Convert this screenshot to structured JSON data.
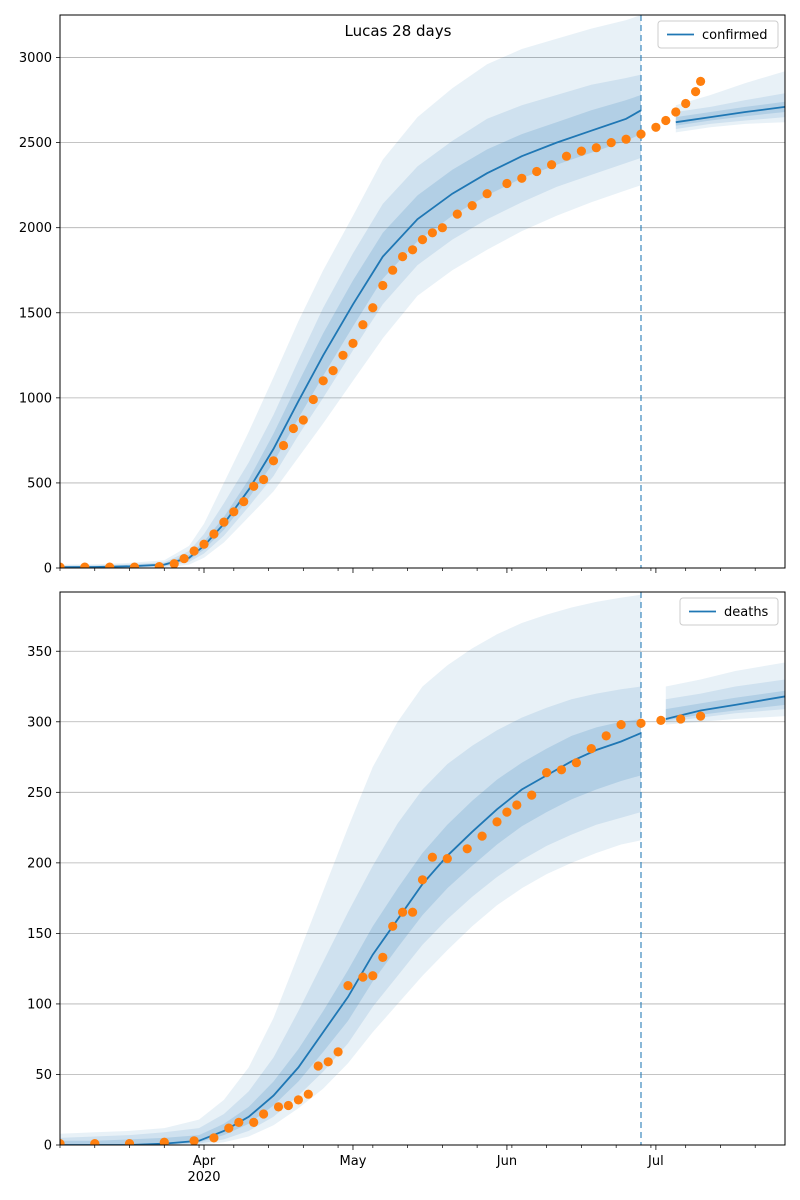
{
  "title": "Lucas 28 days",
  "colors": {
    "model": "#1f77b4",
    "observed": "#ff7f0e",
    "grid": "#b0b0b0"
  },
  "x_ticks": [
    {
      "label": "Apr",
      "sub": "2020",
      "date": "2020-04-01"
    },
    {
      "label": "May",
      "sub": "",
      "date": "2020-05-01"
    },
    {
      "label": "Jun",
      "sub": "",
      "date": "2020-06-01"
    },
    {
      "label": "Jul",
      "sub": "",
      "date": "2020-07-01"
    }
  ],
  "chart_data": [
    {
      "type": "line",
      "xlim": [
        "2020-03-03",
        "2020-07-27"
      ],
      "ylim": [
        0,
        3250
      ],
      "yticks": [
        0,
        500,
        1000,
        1500,
        2000,
        2500,
        3000
      ],
      "legend": {
        "label": "confirmed",
        "placement": "top-right"
      },
      "grid": "horizontal",
      "forecast_start": "2020-06-28",
      "model": {
        "x": [
          "2020-03-03",
          "2020-03-10",
          "2020-03-17",
          "2020-03-24",
          "2020-03-29",
          "2020-04-01",
          "2020-04-05",
          "2020-04-10",
          "2020-04-15",
          "2020-04-20",
          "2020-04-25",
          "2020-05-01",
          "2020-05-07",
          "2020-05-14",
          "2020-05-21",
          "2020-05-28",
          "2020-06-04",
          "2020-06-11",
          "2020-06-18",
          "2020-06-25",
          "2020-06-28",
          "2020-07-05",
          "2020-07-12",
          "2020-07-19",
          "2020-07-27"
        ],
        "y": [
          5,
          6,
          10,
          20,
          60,
          130,
          260,
          460,
          700,
          980,
          1250,
          1550,
          1830,
          2050,
          2200,
          2320,
          2420,
          2500,
          2570,
          2640,
          2690,
          2620,
          2650,
          2680,
          2710
        ],
        "band_outer": [
          [
            0,
            20
          ],
          [
            0,
            22
          ],
          [
            0,
            30
          ],
          [
            0,
            45
          ],
          [
            20,
            130
          ],
          [
            60,
            260
          ],
          [
            150,
            500
          ],
          [
            300,
            800
          ],
          [
            450,
            1120
          ],
          [
            650,
            1450
          ],
          [
            850,
            1750
          ],
          [
            1100,
            2070
          ],
          [
            1350,
            2400
          ],
          [
            1600,
            2650
          ],
          [
            1750,
            2820
          ],
          [
            1870,
            2960
          ],
          [
            1980,
            3050
          ],
          [
            2070,
            3110
          ],
          [
            2150,
            3170
          ],
          [
            2220,
            3220
          ],
          [
            2250,
            3250
          ],
          [
            2560,
            2720
          ],
          [
            2590,
            2780
          ],
          [
            2610,
            2850
          ],
          [
            2620,
            2920
          ]
        ],
        "band_mid": [
          [
            1,
            14
          ],
          [
            1,
            16
          ],
          [
            3,
            22
          ],
          [
            8,
            34
          ],
          [
            35,
            100
          ],
          [
            85,
            200
          ],
          [
            190,
            380
          ],
          [
            360,
            620
          ],
          [
            540,
            900
          ],
          [
            780,
            1220
          ],
          [
            1000,
            1530
          ],
          [
            1280,
            1850
          ],
          [
            1550,
            2140
          ],
          [
            1780,
            2360
          ],
          [
            1930,
            2510
          ],
          [
            2050,
            2640
          ],
          [
            2150,
            2720
          ],
          [
            2240,
            2780
          ],
          [
            2310,
            2840
          ],
          [
            2380,
            2880
          ],
          [
            2410,
            2900
          ],
          [
            2580,
            2680
          ],
          [
            2610,
            2710
          ],
          [
            2630,
            2750
          ],
          [
            2650,
            2790
          ]
        ],
        "band_inner": [
          [
            2,
            9
          ],
          [
            3,
            10
          ],
          [
            6,
            16
          ],
          [
            13,
            27
          ],
          [
            47,
            78
          ],
          [
            108,
            155
          ],
          [
            225,
            300
          ],
          [
            410,
            520
          ],
          [
            620,
            790
          ],
          [
            880,
            1090
          ],
          [
            1130,
            1380
          ],
          [
            1420,
            1690
          ],
          [
            1700,
            1970
          ],
          [
            1920,
            2190
          ],
          [
            2070,
            2340
          ],
          [
            2190,
            2460
          ],
          [
            2290,
            2550
          ],
          [
            2370,
            2620
          ],
          [
            2440,
            2690
          ],
          [
            2510,
            2750
          ],
          [
            2550,
            2780
          ],
          [
            2600,
            2650
          ],
          [
            2630,
            2680
          ],
          [
            2655,
            2710
          ],
          [
            2680,
            2740
          ]
        ]
      },
      "observed": {
        "x": [
          "2020-03-03",
          "2020-03-08",
          "2020-03-13",
          "2020-03-18",
          "2020-03-23",
          "2020-03-26",
          "2020-03-28",
          "2020-03-30",
          "2020-04-01",
          "2020-04-03",
          "2020-04-05",
          "2020-04-07",
          "2020-04-09",
          "2020-04-11",
          "2020-04-13",
          "2020-04-15",
          "2020-04-17",
          "2020-04-19",
          "2020-04-21",
          "2020-04-23",
          "2020-04-25",
          "2020-04-27",
          "2020-04-29",
          "2020-05-01",
          "2020-05-03",
          "2020-05-05",
          "2020-05-07",
          "2020-05-09",
          "2020-05-11",
          "2020-05-13",
          "2020-05-15",
          "2020-05-17",
          "2020-05-19",
          "2020-05-22",
          "2020-05-25",
          "2020-05-28",
          "2020-06-01",
          "2020-06-04",
          "2020-06-07",
          "2020-06-10",
          "2020-06-13",
          "2020-06-16",
          "2020-06-19",
          "2020-06-22",
          "2020-06-25",
          "2020-06-28",
          "2020-07-01",
          "2020-07-03",
          "2020-07-05",
          "2020-07-07",
          "2020-07-09",
          "2020-07-10"
        ],
        "y": [
          5,
          5,
          5,
          5,
          8,
          25,
          55,
          100,
          140,
          200,
          270,
          330,
          390,
          480,
          520,
          630,
          720,
          820,
          870,
          990,
          1100,
          1160,
          1250,
          1320,
          1430,
          1530,
          1660,
          1750,
          1830,
          1870,
          1930,
          1970,
          2000,
          2080,
          2130,
          2200,
          2260,
          2290,
          2330,
          2370,
          2420,
          2450,
          2470,
          2500,
          2520,
          2550,
          2590,
          2630,
          2680,
          2730,
          2800,
          2860
        ]
      },
      "xlabel": "",
      "ylabel": ""
    },
    {
      "type": "line",
      "xlim": [
        "2020-03-03",
        "2020-07-27"
      ],
      "ylim": [
        0,
        392
      ],
      "yticks": [
        0,
        50,
        100,
        150,
        200,
        250,
        300,
        350
      ],
      "legend": {
        "label": "deaths",
        "placement": "top-right"
      },
      "grid": "horizontal",
      "forecast_start": "2020-06-28",
      "model": {
        "x": [
          "2020-03-03",
          "2020-03-10",
          "2020-03-17",
          "2020-03-24",
          "2020-03-31",
          "2020-04-05",
          "2020-04-10",
          "2020-04-15",
          "2020-04-20",
          "2020-04-25",
          "2020-04-30",
          "2020-05-05",
          "2020-05-10",
          "2020-05-15",
          "2020-05-20",
          "2020-05-25",
          "2020-05-30",
          "2020-06-04",
          "2020-06-09",
          "2020-06-14",
          "2020-06-19",
          "2020-06-24",
          "2020-06-28",
          "2020-07-03",
          "2020-07-10",
          "2020-07-17",
          "2020-07-27"
        ],
        "y": [
          0,
          0,
          0,
          1,
          3,
          10,
          20,
          35,
          55,
          80,
          105,
          135,
          160,
          185,
          205,
          222,
          238,
          252,
          262,
          272,
          280,
          286,
          292,
          302,
          308,
          312,
          318
        ],
        "band_outer": [
          [
            0,
            8
          ],
          [
            0,
            9
          ],
          [
            0,
            10
          ],
          [
            0,
            12
          ],
          [
            0,
            18
          ],
          [
            2,
            32
          ],
          [
            6,
            55
          ],
          [
            14,
            90
          ],
          [
            26,
            135
          ],
          [
            40,
            180
          ],
          [
            58,
            225
          ],
          [
            80,
            268
          ],
          [
            100,
            300
          ],
          [
            120,
            325
          ],
          [
            138,
            340
          ],
          [
            155,
            352
          ],
          [
            170,
            362
          ],
          [
            182,
            370
          ],
          [
            192,
            376
          ],
          [
            200,
            381
          ],
          [
            207,
            385
          ],
          [
            213,
            388
          ],
          [
            216,
            390
          ],
          [
            298,
            325
          ],
          [
            300,
            330
          ],
          [
            302,
            336
          ],
          [
            304,
            342
          ]
        ],
        "band_mid": [
          [
            0,
            5
          ],
          [
            0,
            6
          ],
          [
            0,
            7
          ],
          [
            0,
            9
          ],
          [
            1,
            12
          ],
          [
            4,
            22
          ],
          [
            10,
            38
          ],
          [
            20,
            62
          ],
          [
            35,
            95
          ],
          [
            52,
            130
          ],
          [
            72,
            165
          ],
          [
            98,
            198
          ],
          [
            120,
            228
          ],
          [
            142,
            252
          ],
          [
            160,
            270
          ],
          [
            176,
            283
          ],
          [
            190,
            294
          ],
          [
            202,
            303
          ],
          [
            212,
            310
          ],
          [
            220,
            316
          ],
          [
            227,
            320
          ],
          [
            232,
            323
          ],
          [
            236,
            325
          ],
          [
            300,
            316
          ],
          [
            303,
            320
          ],
          [
            306,
            325
          ],
          [
            309,
            330
          ]
        ],
        "band_inner": [
          [
            0,
            3
          ],
          [
            0,
            3
          ],
          [
            0,
            4
          ],
          [
            0,
            5
          ],
          [
            2,
            7
          ],
          [
            7,
            15
          ],
          [
            15,
            27
          ],
          [
            28,
            45
          ],
          [
            45,
            68
          ],
          [
            66,
            95
          ],
          [
            88,
            124
          ],
          [
            116,
            155
          ],
          [
            140,
            182
          ],
          [
            163,
            207
          ],
          [
            182,
            227
          ],
          [
            198,
            244
          ],
          [
            213,
            259
          ],
          [
            226,
            271
          ],
          [
            236,
            281
          ],
          [
            245,
            290
          ],
          [
            252,
            296
          ],
          [
            258,
            300
          ],
          [
            262,
            302
          ],
          [
            301,
            309
          ],
          [
            305,
            313
          ],
          [
            308,
            317
          ],
          [
            312,
            322
          ]
        ]
      },
      "observed": {
        "x": [
          "2020-03-03",
          "2020-03-10",
          "2020-03-17",
          "2020-03-24",
          "2020-03-30",
          "2020-04-03",
          "2020-04-06",
          "2020-04-08",
          "2020-04-11",
          "2020-04-13",
          "2020-04-16",
          "2020-04-18",
          "2020-04-20",
          "2020-04-22",
          "2020-04-24",
          "2020-04-26",
          "2020-04-28",
          "2020-04-30",
          "2020-05-03",
          "2020-05-05",
          "2020-05-07",
          "2020-05-09",
          "2020-05-11",
          "2020-05-13",
          "2020-05-15",
          "2020-05-17",
          "2020-05-20",
          "2020-05-24",
          "2020-05-27",
          "2020-05-30",
          "2020-06-01",
          "2020-06-03",
          "2020-06-06",
          "2020-06-09",
          "2020-06-12",
          "2020-06-15",
          "2020-06-18",
          "2020-06-21",
          "2020-06-24",
          "2020-06-28",
          "2020-07-02",
          "2020-07-06",
          "2020-07-10"
        ],
        "y": [
          1,
          1,
          1,
          2,
          3,
          5,
          12,
          16,
          16,
          22,
          27,
          28,
          32,
          36,
          56,
          59,
          66,
          113,
          119,
          120,
          133,
          155,
          165,
          165,
          188,
          204,
          203,
          210,
          219,
          229,
          236,
          241,
          248,
          264,
          266,
          271,
          281,
          290,
          298,
          299,
          301,
          302,
          304
        ]
      },
      "xlabel": "",
      "ylabel": ""
    }
  ]
}
